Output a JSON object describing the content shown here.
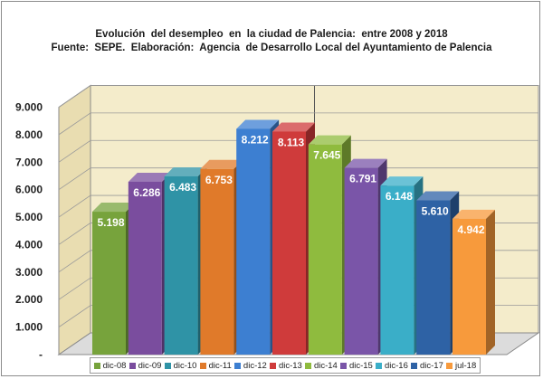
{
  "chart_data": {
    "type": "bar",
    "title": "Evolución  del desempleo  en  la ciudad de Palencia:  entre 2008 y 2018",
    "subtitle": "Fuente:  SEPE.  Elaboración:  Agencia  de Desarrollo Local del Ayuntamiento de Palencia",
    "xlabel": "",
    "ylabel": "",
    "ylim": [
      0,
      9000
    ],
    "yticks": [
      "-",
      "1.000",
      "2.000",
      "3.000",
      "4.000",
      "5.000",
      "6.000",
      "7.000",
      "8.000",
      "9.000"
    ],
    "grid": true,
    "legend_position": "bottom",
    "categories": [
      "dic-08",
      "dic-09",
      "dic-10",
      "dic-11",
      "dic-12",
      "dic-13",
      "dic-14",
      "dic-15",
      "dic-16",
      "dic-17",
      "jul-18"
    ],
    "values": [
      5198,
      6286,
      6483,
      6753,
      8212,
      8113,
      7645,
      6791,
      6148,
      5610,
      4942
    ],
    "value_labels": [
      "5.198",
      "6.286",
      "6.483",
      "6.753",
      "8.212",
      "8.113",
      "7.645",
      "6.791",
      "6.148",
      "5.610",
      "4.942"
    ],
    "colors": [
      "#77a33c",
      "#7a4d9e",
      "#2f93a6",
      "#e07a2a",
      "#3d7fd1",
      "#cf3b3b",
      "#8fbb3e",
      "#7a55a8",
      "#3aaec8",
      "#2e62a5",
      "#f79a3c"
    ]
  }
}
